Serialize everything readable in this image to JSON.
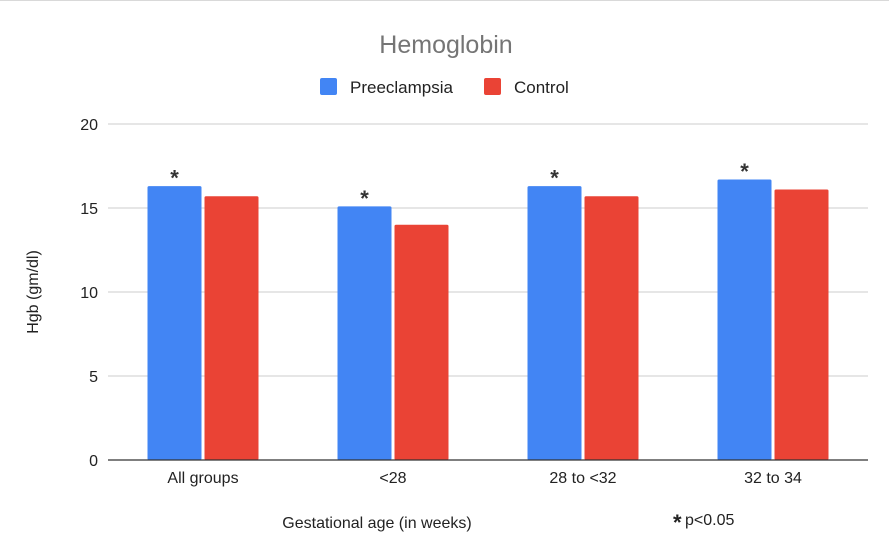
{
  "chart_data": {
    "type": "bar",
    "title": "Hemoglobin",
    "xlabel": "Gestational age (in weeks)",
    "ylabel": "Hgb (gm/dl)",
    "ylim": [
      0,
      20
    ],
    "yticks": [
      0,
      5,
      10,
      15,
      20
    ],
    "grid": true,
    "legend_position": "top",
    "categories": [
      "All groups",
      "<28",
      "28 to <32",
      "32 to 34"
    ],
    "series": [
      {
        "name": "Preeclampsia",
        "color": "#4285f4",
        "values": [
          16.3,
          15.1,
          16.3,
          16.7
        ]
      },
      {
        "name": "Control",
        "color": "#ea4335",
        "values": [
          15.7,
          14.0,
          15.7,
          16.1
        ]
      }
    ],
    "significance_marker": "*",
    "significant_categories": [
      "All groups",
      "<28",
      "28 to <32",
      "32 to 34"
    ],
    "footnote": "p<0.05"
  }
}
